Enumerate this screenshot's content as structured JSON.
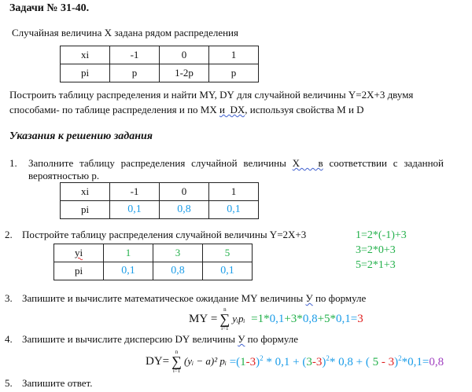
{
  "title": "Задачи № 31-40.",
  "intro": "Случайная величина X задана рядом распределения",
  "table1": {
    "rows": [
      [
        "xi",
        "-1",
        "0",
        "1"
      ],
      [
        "pi",
        "p",
        "1-2p",
        "p"
      ]
    ]
  },
  "task_line1": "Построить таблицу распределения и найти MY, DY для случайной величины Y=2X+3 двумя",
  "task_line2_a": "способами- по таблице распределения и по MX ",
  "task_line2_b": "и  DX",
  "task_line2_c": ", используя свойства M и D",
  "hints_heading": "Указания к решению задания",
  "steps": [
    {
      "num": "1.",
      "text_a": "Заполните таблицу распределения случайной величины ",
      "text_u": "X   в",
      "text_b": " соответствии с заданной",
      "text2": "вероятностью p."
    },
    {
      "num": "2.",
      "text": "Постройте таблицу распределения случайной величины Y=2X+3"
    },
    {
      "num": "3.",
      "text_a": "Запишите и вычислите математическое ожидание MY величины ",
      "text_u": "У",
      "text_b": " по формуле"
    },
    {
      "num": "4.",
      "text_a": "Запишите и вычислите дисперсию DY величины ",
      "text_u": "У",
      "text_b": " по формуле"
    },
    {
      "num": "5.",
      "text": "Запишите ответ."
    }
  ],
  "table2": {
    "header": [
      "xi",
      "-1",
      "0",
      "1"
    ],
    "label": "pi",
    "values": [
      "0,1",
      "0,8",
      "0,1"
    ]
  },
  "table3": {
    "label_y": "yi",
    "y_values": [
      "1",
      "3",
      "5"
    ],
    "label_p": "pi",
    "p_values": [
      "0,1",
      "0,8",
      "0,1"
    ]
  },
  "y_calculations": [
    "1=2*(-1)+3",
    "3=2*0+3",
    "5=2*1+3"
  ],
  "my_formula": {
    "lhs": "MY =",
    "sigma": "∑",
    "sup": "n",
    "sub": "i=1",
    "term": "yᵢpᵢ"
  },
  "my_calc": [
    {
      "text": "  =1*",
      "color": "#22b04a"
    },
    {
      "text": "0,1",
      "color": "#1a9ce8"
    },
    {
      "text": "+3*",
      "color": "#22b04a"
    },
    {
      "text": "0,8",
      "color": "#1a9ce8"
    },
    {
      "text": "+5*",
      "color": "#22b04a"
    },
    {
      "text": "0,1",
      "color": "#1a9ce8"
    },
    {
      "text": "=",
      "color": "#1a9ce8"
    },
    {
      "text": "3",
      "color": "#e02020"
    }
  ],
  "dy_formula": {
    "lhs": "DY=",
    "sigma": "∑",
    "sup": "n",
    "sub": "i=1",
    "term": "(yᵢ − a)² pᵢ"
  },
  "dy_calc": [
    {
      "text": " =(",
      "color": "#1a9ce8"
    },
    {
      "text": "1",
      "color": "#22b04a"
    },
    {
      "text": "-3",
      "color": "#e02020"
    },
    {
      "text": ")",
      "color": "#1a9ce8"
    },
    {
      "text": "2",
      "color": "#1a9ce8",
      "sup": true
    },
    {
      "text": " * 0,1 + (",
      "color": "#1a9ce8"
    },
    {
      "text": "3",
      "color": "#22b04a"
    },
    {
      "text": "-3",
      "color": "#e02020"
    },
    {
      "text": ")",
      "color": "#1a9ce8"
    },
    {
      "text": "2",
      "color": "#1a9ce8",
      "sup": true
    },
    {
      "text": "* 0,8 + ( ",
      "color": "#1a9ce8"
    },
    {
      "text": "5",
      "color": "#22b04a"
    },
    {
      "text": " - 3",
      "color": "#e02020"
    },
    {
      "text": ")",
      "color": "#1a9ce8"
    },
    {
      "text": "2",
      "color": "#1a9ce8",
      "sup": true
    },
    {
      "text": "*0,1=",
      "color": "#1a9ce8"
    },
    {
      "text": "0,8",
      "color": "#a040c0"
    }
  ]
}
